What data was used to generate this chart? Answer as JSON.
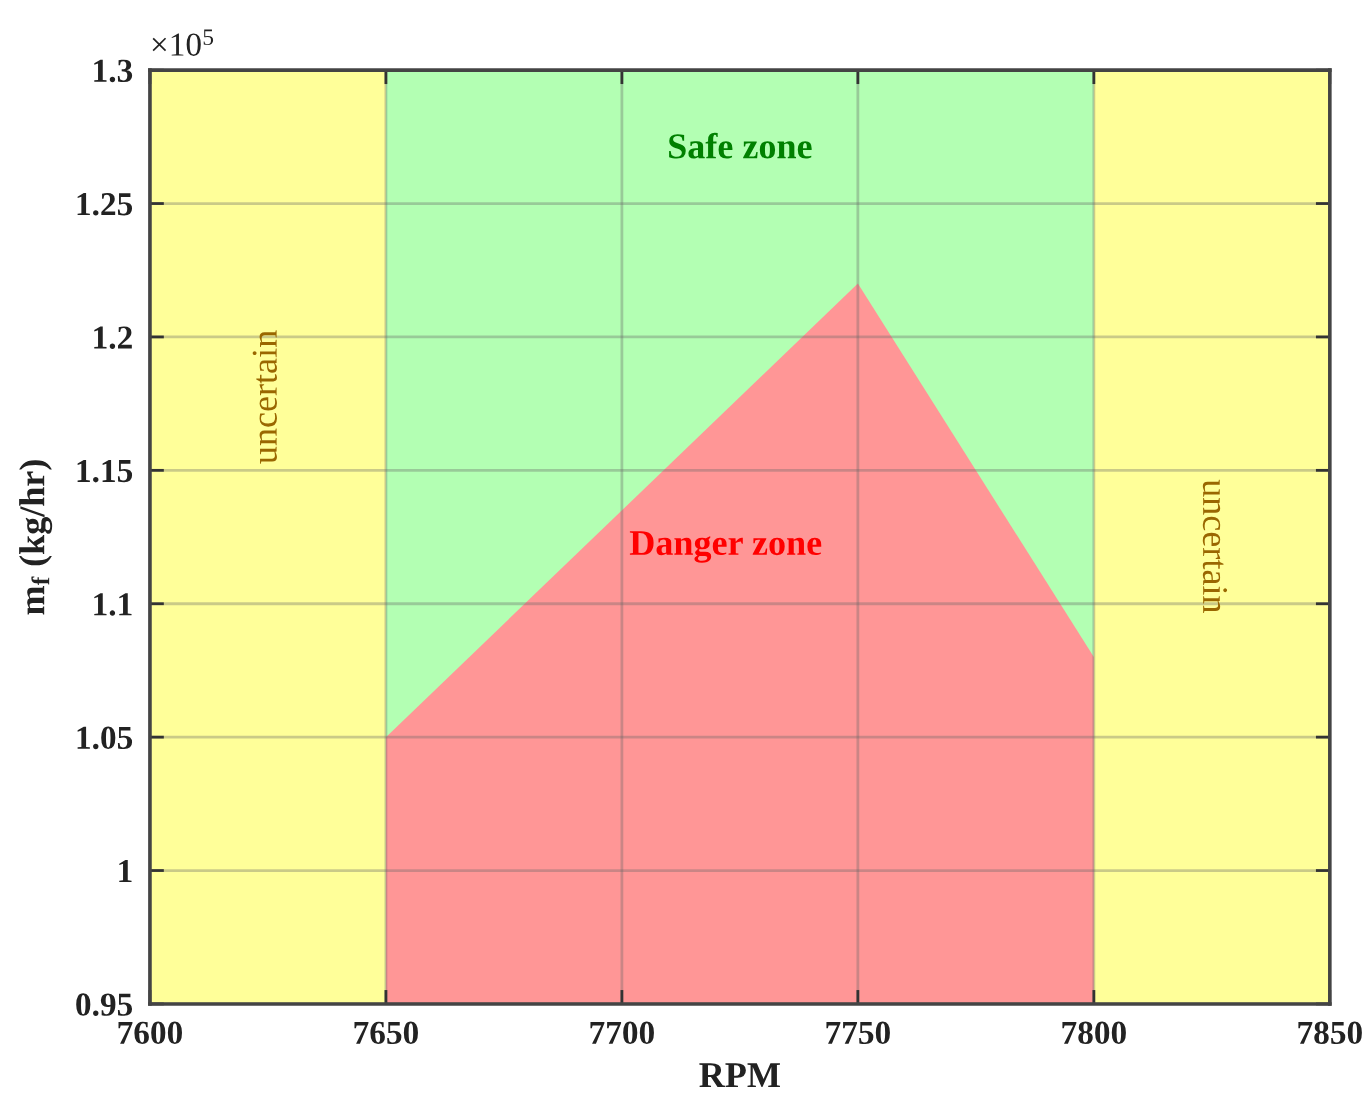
{
  "chart_data": {
    "type": "area",
    "xlabel": "RPM",
    "ylabel": "m$_{f}$ (kg/hr)",
    "annotations": [
      "×10$^{5}$"
    ],
    "series": [
      {
        "name": "Danger zone",
        "color": "#ff9696",
        "x": [
          7650,
          7750,
          7800
        ],
        "values": [
          1.05,
          1.22,
          1.08
        ]
      }
    ],
    "bands": [
      {
        "axis": "x",
        "from": 7600,
        "to": 7650,
        "label": "uncertain",
        "color": "#ffff99"
      },
      {
        "axis": "x",
        "from": 7650,
        "to": 7800,
        "label": "Safe zone",
        "color": "#b3ffb3"
      },
      {
        "axis": "x",
        "from": 7800,
        "to": 7850,
        "label": "uncertain",
        "color": "#ffff99"
      }
    ],
    "xlim": [
      7600,
      7850
    ],
    "xticks": [
      7600,
      7650,
      7700,
      7750,
      7800,
      7850
    ],
    "ylim": [
      0.95,
      1.3
    ],
    "yticks": [
      0.95,
      1,
      1.05,
      1.1,
      1.15,
      1.2,
      1.25,
      1.3
    ],
    "grid": true
  }
}
